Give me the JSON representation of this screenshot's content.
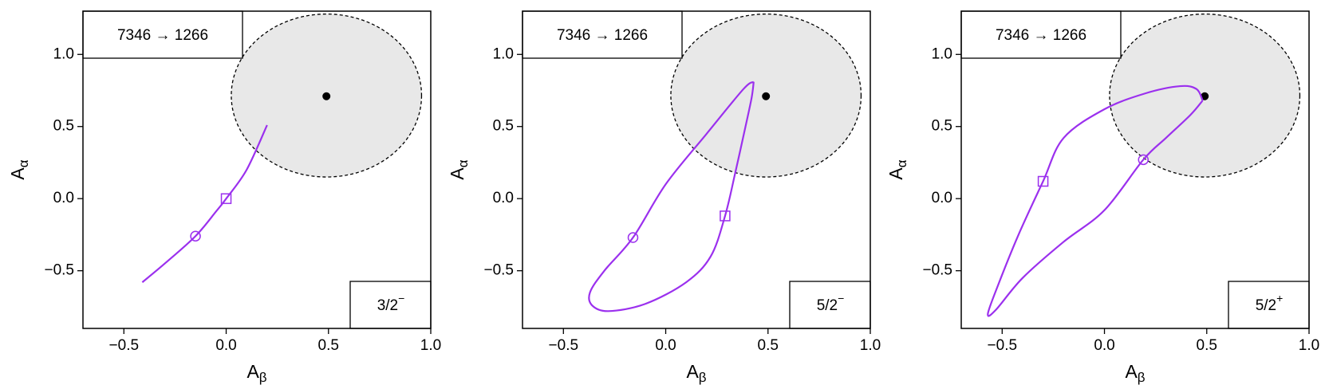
{
  "chart_data": [
    {
      "type": "line",
      "annotation": "7346 → 1266",
      "state": {
        "j": "3/2",
        "parity": "−"
      },
      "xlabel": {
        "main": "A",
        "sub": "β"
      },
      "ylabel": {
        "main": "A",
        "sub": "α"
      },
      "xlim": [
        -0.7,
        1.0
      ],
      "ylim": [
        -0.9,
        1.3
      ],
      "xticks": [
        {
          "value": -0.5,
          "label": "−0.5"
        },
        {
          "value": 0,
          "label": "0.0"
        },
        0.5,
        {
          "value": 1,
          "label": "1.0"
        }
      ],
      "yticks": [
        {
          "value": -0.5,
          "label": "−0.5"
        },
        {
          "value": 0,
          "label": "0.0"
        },
        0.5,
        {
          "value": 1,
          "label": "1.0"
        }
      ],
      "region": {
        "cx": 0.49,
        "cy": 0.715,
        "rx": 0.465,
        "ry": 0.565,
        "color": "#e8e8e8"
      },
      "point": {
        "x": 0.49,
        "y": 0.71,
        "color": "#000000"
      },
      "series": [
        {
          "color": "#9b30ee",
          "x": [
            -0.41,
            -0.3,
            -0.15,
            -0.05,
            0.0,
            0.1,
            0.2
          ],
          "values": [
            -0.58,
            -0.45,
            -0.26,
            -0.09,
            0.0,
            0.2,
            0.51
          ]
        }
      ],
      "markers": [
        {
          "shape": "circle",
          "x": -0.15,
          "y": -0.26
        },
        {
          "shape": "square",
          "x": 0.0,
          "y": 0.0
        }
      ]
    },
    {
      "type": "line",
      "annotation": "7346 → 1266",
      "state": {
        "j": "5/2",
        "parity": "−"
      },
      "xlabel": {
        "main": "A",
        "sub": "β"
      },
      "ylabel": {
        "main": "A",
        "sub": "α"
      },
      "xlim": [
        -0.7,
        1.0
      ],
      "ylim": [
        -0.9,
        1.3
      ],
      "xticks": [
        {
          "value": -0.5,
          "label": "−0.5"
        },
        {
          "value": 0,
          "label": "0.0"
        },
        0.5,
        {
          "value": 1,
          "label": "1.0"
        }
      ],
      "yticks": [
        {
          "value": -0.5,
          "label": "−0.5"
        },
        {
          "value": 0,
          "label": "0.0"
        },
        0.5,
        {
          "value": 1,
          "label": "1.0"
        }
      ],
      "region": {
        "cx": 0.49,
        "cy": 0.715,
        "rx": 0.465,
        "ry": 0.565,
        "color": "#e8e8e8"
      },
      "point": {
        "x": 0.49,
        "y": 0.71,
        "color": "#000000"
      },
      "series": [
        {
          "color": "#9b30ee",
          "x": [
            0.43,
            0.38,
            0.2,
            0.0,
            -0.16,
            -0.3,
            -0.37,
            -0.36,
            -0.28,
            -0.1,
            0.1,
            0.22,
            0.29,
            0.34,
            0.39,
            0.42,
            0.43
          ],
          "values": [
            0.81,
            0.76,
            0.45,
            0.1,
            -0.27,
            -0.5,
            -0.65,
            -0.74,
            -0.78,
            -0.73,
            -0.58,
            -0.4,
            -0.12,
            0.18,
            0.5,
            0.7,
            0.81
          ]
        }
      ],
      "markers": [
        {
          "shape": "circle",
          "x": -0.16,
          "y": -0.27
        },
        {
          "shape": "square",
          "x": 0.29,
          "y": -0.12
        }
      ]
    },
    {
      "type": "line",
      "annotation": "7346 → 1266",
      "state": {
        "j": "5/2",
        "parity": "+"
      },
      "xlabel": {
        "main": "A",
        "sub": "β"
      },
      "ylabel": {
        "main": "A",
        "sub": "α"
      },
      "xlim": [
        -0.7,
        1.0
      ],
      "ylim": [
        -0.9,
        1.3
      ],
      "xticks": [
        {
          "value": -0.5,
          "label": "−0.5"
        },
        {
          "value": 0,
          "label": "0.0"
        },
        0.5,
        {
          "value": 1,
          "label": "1.0"
        }
      ],
      "yticks": [
        {
          "value": -0.5,
          "label": "−0.5"
        },
        {
          "value": 0,
          "label": "0.0"
        },
        0.5,
        {
          "value": 1,
          "label": "1.0"
        }
      ],
      "region": {
        "cx": 0.49,
        "cy": 0.715,
        "rx": 0.465,
        "ry": 0.565,
        "color": "#e8e8e8"
      },
      "point": {
        "x": 0.49,
        "y": 0.71,
        "color": "#000000"
      },
      "series": [
        {
          "color": "#9b30ee",
          "x": [
            0.48,
            0.45,
            0.37,
            0.2,
            0.0,
            -0.2,
            -0.3,
            -0.42,
            -0.52,
            -0.57,
            -0.53,
            -0.4,
            -0.2,
            0.0,
            0.19,
            0.3,
            0.42,
            0.48
          ],
          "values": [
            0.68,
            0.76,
            0.78,
            0.73,
            0.62,
            0.42,
            0.12,
            -0.25,
            -0.6,
            -0.8,
            -0.77,
            -0.55,
            -0.3,
            -0.08,
            0.27,
            0.42,
            0.58,
            0.68
          ]
        }
      ],
      "markers": [
        {
          "shape": "square",
          "x": -0.3,
          "y": 0.12
        },
        {
          "shape": "circle",
          "x": 0.19,
          "y": 0.27
        }
      ]
    }
  ]
}
